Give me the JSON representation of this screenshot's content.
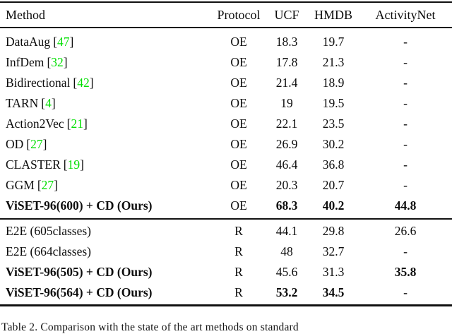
{
  "colors": {
    "citation_green": "#00df00",
    "rule_black": "#111111"
  },
  "table": {
    "columns": [
      "Method",
      "Protocol",
      "UCF",
      "HMDB",
      "ActivityNet"
    ],
    "rows": [
      {
        "method": "DataAug",
        "cite": "47",
        "protocol": "OE",
        "ucf": "18.3",
        "hmdb": "19.7",
        "anet": "-",
        "bold_cells": [],
        "rule_after": false
      },
      {
        "method": "InfDem",
        "cite": "32",
        "protocol": "OE",
        "ucf": "17.8",
        "hmdb": "21.3",
        "anet": "-",
        "bold_cells": [],
        "rule_after": false
      },
      {
        "method": "Bidirectional",
        "cite": "42",
        "protocol": "OE",
        "ucf": "21.4",
        "hmdb": "18.9",
        "anet": "-",
        "bold_cells": [],
        "rule_after": false
      },
      {
        "method": "TARN",
        "cite": "4",
        "protocol": "OE",
        "ucf": "19",
        "hmdb": "19.5",
        "anet": "-",
        "bold_cells": [],
        "rule_after": false
      },
      {
        "method": "Action2Vec",
        "cite": "21",
        "protocol": "OE",
        "ucf": "22.1",
        "hmdb": "23.5",
        "anet": "-",
        "bold_cells": [],
        "rule_after": false
      },
      {
        "method": "OD",
        "cite": "27",
        "protocol": "OE",
        "ucf": "26.9",
        "hmdb": "30.2",
        "anet": "-",
        "bold_cells": [],
        "rule_after": false
      },
      {
        "method": "CLASTER",
        "cite": "19",
        "protocol": "OE",
        "ucf": "46.4",
        "hmdb": "36.8",
        "anet": "-",
        "bold_cells": [],
        "rule_after": false
      },
      {
        "method": "GGM",
        "cite": "27",
        "protocol": "OE",
        "ucf": "20.3",
        "hmdb": "20.7",
        "anet": "-",
        "bold_cells": [],
        "rule_after": false
      },
      {
        "method": "ViSET-96(600) + CD (Ours)",
        "cite": "",
        "protocol": "OE",
        "ucf": "68.3",
        "hmdb": "40.2",
        "anet": "44.8",
        "bold_cells": [
          "method",
          "ucf",
          "hmdb",
          "anet"
        ],
        "rule_after": true
      },
      {
        "method": "E2E (605classes)",
        "cite": "",
        "protocol": "R",
        "ucf": "44.1",
        "hmdb": "29.8",
        "anet": "26.6",
        "bold_cells": [],
        "rule_after": false
      },
      {
        "method": "E2E (664classes)",
        "cite": "",
        "protocol": "R",
        "ucf": "48",
        "hmdb": "32.7",
        "anet": "-",
        "bold_cells": [],
        "rule_after": false
      },
      {
        "method": "ViSET-96(505) + CD (Ours)",
        "cite": "",
        "protocol": "R",
        "ucf": "45.6",
        "hmdb": "31.3",
        "anet": "35.8",
        "bold_cells": [
          "method",
          "anet"
        ],
        "rule_after": false
      },
      {
        "method": "ViSET-96(564) + CD (Ours)",
        "cite": "",
        "protocol": "R",
        "ucf": "53.2",
        "hmdb": "34.5",
        "anet": "-",
        "bold_cells": [
          "method",
          "ucf",
          "hmdb"
        ],
        "rule_after": false
      }
    ]
  },
  "caption": "Table 2. Comparison with the state of the art methods on standard"
}
